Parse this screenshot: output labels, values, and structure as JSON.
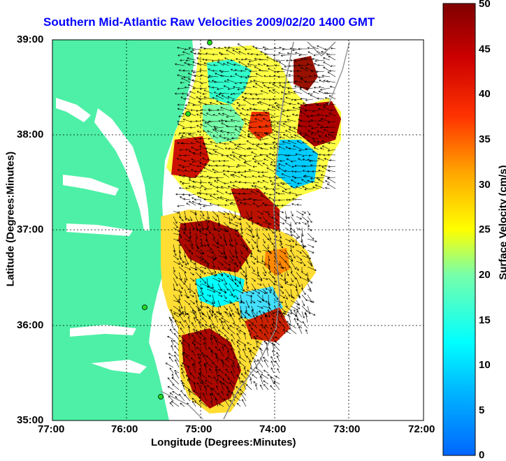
{
  "title": "Southern Mid-Atlantic Raw Velocities 2009/02/20 1400 GMT",
  "axes": {
    "xlabel": "Longitude (Degrees:Minutes)",
    "ylabel": "Latitude (Degrees:Minutes)",
    "x_ticks": [
      "77:00",
      "76:00",
      "75:00",
      "74:00",
      "73:00",
      "72:00"
    ],
    "y_ticks": [
      "39:00",
      "38:00",
      "37:00",
      "36:00",
      "35:00"
    ]
  },
  "colorbar": {
    "label": "Surface Velocity (cm/s)",
    "ticks": [
      "50",
      "45",
      "40",
      "35",
      "30",
      "25",
      "20",
      "15",
      "10",
      "5",
      "0"
    ],
    "min": 0,
    "max": 50
  },
  "colors": {
    "land": "#4df0a6",
    "title": "#0000ff",
    "station": "#22dd22"
  }
}
